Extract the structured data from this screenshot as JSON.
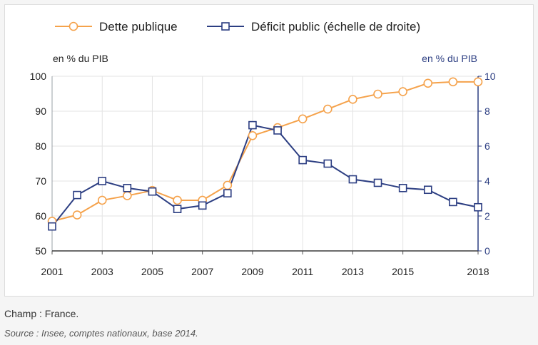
{
  "chart_data": {
    "type": "line",
    "legend_position": "top",
    "grid": true,
    "left_axis": {
      "unit": "en % du PIB",
      "ylim": [
        50,
        100
      ],
      "ticks": [
        50,
        60,
        70,
        80,
        90,
        100
      ]
    },
    "right_axis": {
      "unit": "en % du PIB",
      "ylim": [
        0,
        10
      ],
      "ticks": [
        0,
        2,
        4,
        6,
        8,
        10
      ]
    },
    "x": [
      2001,
      2002,
      2003,
      2004,
      2005,
      2006,
      2007,
      2008,
      2009,
      2010,
      2011,
      2012,
      2013,
      2014,
      2015,
      2016,
      2017,
      2018
    ],
    "x_tick_labels": [
      "2001",
      "2003",
      "2005",
      "2007",
      "2009",
      "2011",
      "2013",
      "2015",
      "2018"
    ],
    "x_tick_values": [
      2001,
      2003,
      2005,
      2007,
      2009,
      2011,
      2013,
      2015,
      2018
    ],
    "series": [
      {
        "name": "Dette publique",
        "axis": "left",
        "color": "#f5a24b",
        "marker": "circle",
        "values": [
          58.5,
          60.3,
          64.5,
          65.8,
          67.3,
          64.5,
          64.5,
          68.8,
          83.0,
          85.3,
          87.8,
          90.6,
          93.4,
          94.9,
          95.6,
          98.0,
          98.4,
          98.4
        ]
      },
      {
        "name": "Déficit public (échelle de droite)",
        "axis": "right",
        "color": "#2c3e82",
        "marker": "square",
        "values": [
          1.4,
          3.2,
          4.0,
          3.6,
          3.4,
          2.4,
          2.6,
          3.3,
          7.2,
          6.9,
          5.2,
          5.0,
          4.1,
          3.9,
          3.6,
          3.5,
          2.8,
          2.5
        ]
      }
    ]
  },
  "notes": {
    "champ": "Champ : France.",
    "source": "Source : Insee, comptes nationaux, base 2014."
  }
}
